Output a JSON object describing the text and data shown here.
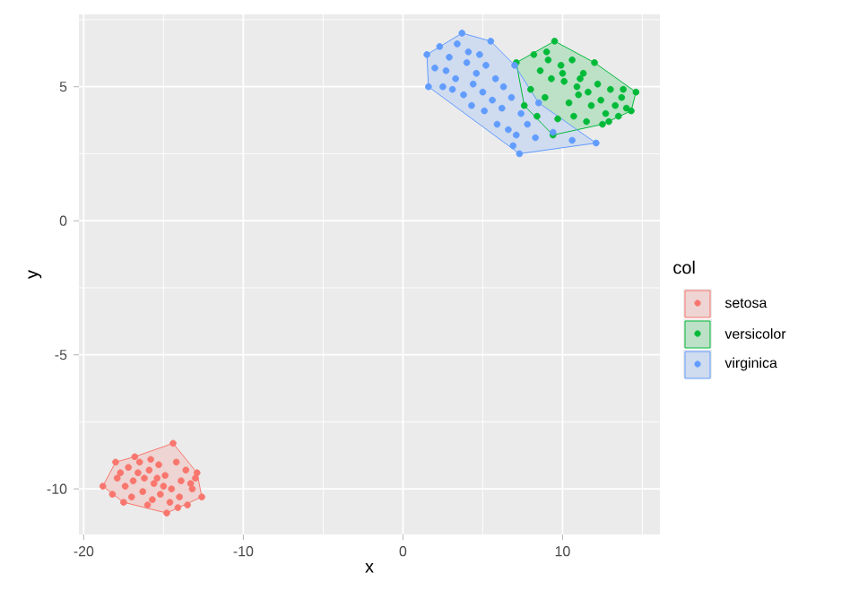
{
  "chart_data": {
    "type": "scatter",
    "xlabel": "x",
    "ylabel": "y",
    "legend_title": "col",
    "legend": "right",
    "grid": true,
    "xlim": [
      -20.3,
      16.1
    ],
    "ylim": [
      -11.7,
      7.7
    ],
    "xticks": [
      -20,
      -10,
      0,
      10
    ],
    "yticks": [
      -10,
      -5,
      0,
      5
    ],
    "series": [
      {
        "type": "area",
        "marker": "none",
        "color": "#f8766d",
        "x": [
          -14.4,
          -12.9,
          -12.6,
          -14.8,
          -17.5,
          -18.8,
          -18.0,
          -16.8,
          -14.4
        ],
        "values": [
          -8.3,
          -9.4,
          -10.3,
          -10.9,
          -10.5,
          -9.9,
          -9.0,
          -8.8,
          -8.3
        ]
      },
      {
        "type": "area",
        "marker": "none",
        "color": "#00ba38",
        "x": [
          7.1,
          9.5,
          12.0,
          14.6,
          14.3,
          12.5,
          9.4,
          7.6,
          7.1
        ],
        "values": [
          5.9,
          6.7,
          5.9,
          4.8,
          4.1,
          3.6,
          3.2,
          4.3,
          5.9
        ]
      },
      {
        "type": "area",
        "marker": "none",
        "color": "#619cff",
        "x": [
          1.5,
          3.7,
          5.5,
          7.0,
          8.5,
          12.1,
          7.3,
          1.6,
          1.5
        ],
        "values": [
          6.2,
          7.0,
          6.7,
          5.8,
          4.4,
          2.9,
          2.5,
          5.0,
          6.2
        ]
      },
      {
        "name": "setosa",
        "marker": "circle",
        "color": "#f8766d",
        "x": [
          -14.4,
          -12.9,
          -12.6,
          -14.8,
          -17.5,
          -18.8,
          -18.0,
          -16.8,
          -17.2,
          -16.5,
          -15.9,
          -15.3,
          -14.9,
          -14.2,
          -13.6,
          -13.3,
          -17.9,
          -17.4,
          -16.9,
          -16.2,
          -15.6,
          -15.0,
          -14.5,
          -13.9,
          -13.2,
          -18.2,
          -17.0,
          -16.3,
          -15.7,
          -15.2,
          -14.6,
          -14.0,
          -13.5,
          -16.6,
          -15.4,
          -14.1,
          -17.7,
          -16.0,
          -13.0,
          -15.8
        ],
        "values": [
          -8.3,
          -9.4,
          -10.3,
          -10.9,
          -10.5,
          -9.9,
          -9.0,
          -8.8,
          -9.2,
          -9.0,
          -9.3,
          -9.1,
          -9.5,
          -9.0,
          -9.3,
          -9.8,
          -9.6,
          -9.9,
          -9.7,
          -9.6,
          -9.8,
          -9.9,
          -10.0,
          -9.7,
          -10.0,
          -10.2,
          -10.3,
          -10.1,
          -10.4,
          -10.2,
          -10.5,
          -10.3,
          -10.6,
          -9.4,
          -9.6,
          -10.7,
          -9.4,
          -10.6,
          -9.6,
          -8.9
        ]
      },
      {
        "name": "versicolor",
        "marker": "circle",
        "color": "#00ba38",
        "x": [
          7.1,
          9.5,
          12.0,
          14.6,
          14.3,
          12.5,
          9.4,
          7.6,
          8.2,
          9.0,
          9.9,
          10.6,
          11.3,
          12.2,
          13.0,
          13.7,
          8.6,
          9.3,
          10.1,
          10.9,
          11.6,
          12.4,
          13.3,
          14.0,
          8.0,
          8.9,
          10.4,
          11.0,
          11.8,
          12.7,
          13.5,
          9.7,
          10.7,
          11.5,
          12.9,
          8.4,
          10.0,
          11.1,
          13.8,
          9.1
        ],
        "values": [
          5.9,
          6.7,
          5.9,
          4.8,
          4.1,
          3.6,
          3.2,
          4.3,
          6.2,
          6.3,
          5.8,
          6.0,
          5.5,
          5.1,
          4.9,
          4.6,
          5.6,
          5.3,
          5.2,
          5.0,
          4.8,
          4.5,
          4.3,
          4.2,
          4.9,
          4.6,
          4.4,
          4.7,
          4.3,
          4.0,
          3.9,
          3.8,
          3.9,
          3.7,
          3.7,
          3.9,
          5.5,
          5.3,
          4.9,
          6.0
        ]
      },
      {
        "name": "virginica",
        "marker": "circle",
        "color": "#619cff",
        "x": [
          1.5,
          3.7,
          5.5,
          7.0,
          8.5,
          12.1,
          7.3,
          1.6,
          2.3,
          2.9,
          3.4,
          4.1,
          4.8,
          2.0,
          2.7,
          3.3,
          4.0,
          4.6,
          5.2,
          2.5,
          3.1,
          3.8,
          4.4,
          5.0,
          5.8,
          6.3,
          4.3,
          5.1,
          5.6,
          6.2,
          6.8,
          7.4,
          5.9,
          6.6,
          7.1,
          7.8,
          8.3,
          9.4,
          10.6,
          6.9
        ],
        "values": [
          6.2,
          7.0,
          6.7,
          5.8,
          4.4,
          2.9,
          2.5,
          5.0,
          6.5,
          6.1,
          6.6,
          6.3,
          6.2,
          5.7,
          5.6,
          5.3,
          5.9,
          5.5,
          5.8,
          5.0,
          4.9,
          4.7,
          5.1,
          4.8,
          5.3,
          5.0,
          4.3,
          4.1,
          4.5,
          4.2,
          4.6,
          4.0,
          3.6,
          3.4,
          3.2,
          3.6,
          3.1,
          3.3,
          3.0,
          2.8
        ]
      }
    ]
  }
}
